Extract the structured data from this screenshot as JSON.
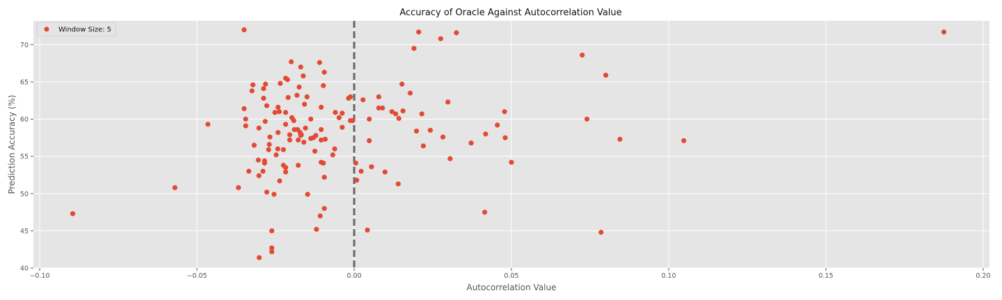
{
  "chart_data": {
    "type": "scatter",
    "title": "Accuracy of Oracle Against Autocorrelation Value",
    "xlabel": "Autocorrelation Value",
    "ylabel": "Prediction Accuracy (%)",
    "xlim": [
      -0.102,
      0.202
    ],
    "ylim": [
      40,
      73.2
    ],
    "xticks": [
      -0.1,
      -0.05,
      0.0,
      0.05,
      0.1,
      0.15,
      0.2
    ],
    "xtick_labels": [
      "−0.10",
      "−0.05",
      "0.00",
      "0.05",
      "0.10",
      "0.15",
      "0.20"
    ],
    "yticks": [
      40,
      45,
      50,
      55,
      60,
      65,
      70
    ],
    "ytick_labels": [
      "40",
      "45",
      "50",
      "55",
      "60",
      "65",
      "70"
    ],
    "grid": true,
    "legend": {
      "placement": "upper-left",
      "entries": [
        "Window Size: 5"
      ]
    },
    "reference_line": {
      "axis": "x",
      "value": 0.0,
      "style": "dashed",
      "color": "#666666"
    },
    "colors": {
      "marker": "#E24A33",
      "plot_background": "#E5E5E5",
      "grid": "#FFFFFF"
    },
    "series": [
      {
        "name": "Window Size: 5",
        "points": [
          [
            -0.0895,
            47.3
          ],
          [
            -0.057,
            50.8
          ],
          [
            -0.0465,
            59.3
          ],
          [
            -0.0368,
            50.8
          ],
          [
            -0.035,
            72.0
          ],
          [
            -0.035,
            61.4
          ],
          [
            -0.0345,
            60.0
          ],
          [
            -0.0345,
            59.1
          ],
          [
            -0.0335,
            53.0
          ],
          [
            -0.0325,
            63.8
          ],
          [
            -0.0322,
            64.6
          ],
          [
            -0.0318,
            56.5
          ],
          [
            -0.0305,
            54.5
          ],
          [
            -0.0303,
            58.8
          ],
          [
            -0.0303,
            52.4
          ],
          [
            -0.0302,
            41.4
          ],
          [
            -0.029,
            53.0
          ],
          [
            -0.0288,
            62.8
          ],
          [
            -0.0288,
            64.1
          ],
          [
            -0.0285,
            54.4
          ],
          [
            -0.0285,
            54.1
          ],
          [
            -0.0283,
            59.7
          ],
          [
            -0.0282,
            64.7
          ],
          [
            -0.0278,
            61.8
          ],
          [
            -0.0278,
            50.2
          ],
          [
            -0.0272,
            55.9
          ],
          [
            -0.027,
            56.6
          ],
          [
            -0.0268,
            57.6
          ],
          [
            -0.0262,
            45.0
          ],
          [
            -0.0262,
            42.7
          ],
          [
            -0.0262,
            42.2
          ],
          [
            -0.0255,
            49.9
          ],
          [
            -0.0252,
            60.9
          ],
          [
            -0.0248,
            55.2
          ],
          [
            -0.0243,
            56.0
          ],
          [
            -0.0242,
            58.2
          ],
          [
            -0.0242,
            61.6
          ],
          [
            -0.0238,
            61.0
          ],
          [
            -0.0237,
            51.7
          ],
          [
            -0.0235,
            64.8
          ],
          [
            -0.0225,
            55.9
          ],
          [
            -0.0225,
            53.8
          ],
          [
            -0.0218,
            65.5
          ],
          [
            -0.0218,
            60.9
          ],
          [
            -0.0218,
            59.3
          ],
          [
            -0.0218,
            53.5
          ],
          [
            -0.0218,
            52.9
          ],
          [
            -0.0212,
            65.3
          ],
          [
            -0.021,
            62.9
          ],
          [
            -0.0205,
            57.9
          ],
          [
            -0.0205,
            57.2
          ],
          [
            -0.02,
            67.7
          ],
          [
            -0.0198,
            60.2
          ],
          [
            -0.0192,
            59.8
          ],
          [
            -0.019,
            58.6
          ],
          [
            -0.0182,
            63.2
          ],
          [
            -0.018,
            58.6
          ],
          [
            -0.0178,
            57.2
          ],
          [
            -0.0178,
            53.8
          ],
          [
            -0.0175,
            64.3
          ],
          [
            -0.0172,
            58.2
          ],
          [
            -0.017,
            67.0
          ],
          [
            -0.017,
            57.8
          ],
          [
            -0.0168,
            57.9
          ],
          [
            -0.0162,
            65.8
          ],
          [
            -0.016,
            56.9
          ],
          [
            -0.0158,
            62.0
          ],
          [
            -0.0155,
            58.8
          ],
          [
            -0.015,
            63.0
          ],
          [
            -0.0148,
            49.9
          ],
          [
            -0.0138,
            60.0
          ],
          [
            -0.0138,
            57.4
          ],
          [
            -0.013,
            57.5
          ],
          [
            -0.0125,
            55.7
          ],
          [
            -0.0122,
            57.8
          ],
          [
            -0.012,
            45.2
          ],
          [
            -0.011,
            67.6
          ],
          [
            -0.0108,
            47.0
          ],
          [
            -0.0105,
            61.6
          ],
          [
            -0.0105,
            58.6
          ],
          [
            -0.0105,
            57.2
          ],
          [
            -0.0105,
            54.2
          ],
          [
            -0.0098,
            64.5
          ],
          [
            -0.0098,
            54.1
          ],
          [
            -0.0095,
            66.3
          ],
          [
            -0.0095,
            52.2
          ],
          [
            -0.0095,
            48.0
          ],
          [
            -0.0092,
            57.3
          ],
          [
            -0.0068,
            55.2
          ],
          [
            -0.0062,
            56.0
          ],
          [
            -0.006,
            60.9
          ],
          [
            -0.0048,
            60.2
          ],
          [
            -0.0038,
            60.8
          ],
          [
            -0.0038,
            58.9
          ],
          [
            -0.0018,
            62.8
          ],
          [
            -0.0012,
            59.8
          ],
          [
            -0.0012,
            63.0
          ],
          [
            -0.0005,
            59.8
          ],
          [
            0.0005,
            54.1
          ],
          [
            0.0008,
            51.8
          ],
          [
            0.0022,
            53.0
          ],
          [
            0.0028,
            62.6
          ],
          [
            0.0042,
            45.1
          ],
          [
            0.0048,
            60.0
          ],
          [
            0.0048,
            57.1
          ],
          [
            0.0055,
            53.6
          ],
          [
            0.0078,
            61.5
          ],
          [
            0.0078,
            63.0
          ],
          [
            0.009,
            61.5
          ],
          [
            0.0098,
            52.9
          ],
          [
            0.012,
            61.0
          ],
          [
            0.0132,
            60.7
          ],
          [
            0.014,
            51.3
          ],
          [
            0.0142,
            60.1
          ],
          [
            0.0152,
            64.7
          ],
          [
            0.0155,
            61.1
          ],
          [
            0.0178,
            63.5
          ],
          [
            0.019,
            69.5
          ],
          [
            0.0198,
            58.4
          ],
          [
            0.0205,
            71.7
          ],
          [
            0.0215,
            60.7
          ],
          [
            0.022,
            56.4
          ],
          [
            0.0242,
            58.5
          ],
          [
            0.0275,
            70.8
          ],
          [
            0.0282,
            57.6
          ],
          [
            0.0298,
            62.3
          ],
          [
            0.0305,
            54.7
          ],
          [
            0.0325,
            71.6
          ],
          [
            0.0372,
            56.8
          ],
          [
            0.0415,
            47.5
          ],
          [
            0.0418,
            58.0
          ],
          [
            0.0455,
            59.2
          ],
          [
            0.0478,
            61.0
          ],
          [
            0.048,
            57.5
          ],
          [
            0.05,
            54.2
          ],
          [
            0.0725,
            68.6
          ],
          [
            0.074,
            60.0
          ],
          [
            0.0785,
            44.8
          ],
          [
            0.08,
            65.9
          ],
          [
            0.0845,
            57.3
          ],
          [
            0.1048,
            57.1
          ],
          [
            0.1875,
            71.7
          ]
        ]
      }
    ]
  }
}
